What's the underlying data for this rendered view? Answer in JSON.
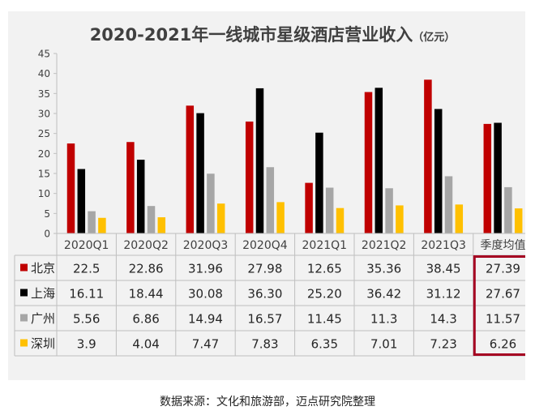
{
  "chart_data": {
    "type": "bar",
    "title": "2020-2021年一线城市星级酒店营业收入",
    "title_unit": "（亿元）",
    "categories": [
      "2020Q1",
      "2020Q2",
      "2020Q3",
      "2020Q4",
      "2021Q1",
      "2021Q2",
      "2021Q3",
      "季度均值"
    ],
    "series": [
      {
        "name": "北京",
        "color": "#c00000",
        "values": [
          22.5,
          22.86,
          31.96,
          27.98,
          12.65,
          35.36,
          38.45,
          27.39
        ],
        "labels": [
          "22.5",
          "22.86",
          "31.96",
          "27.98",
          "12.65",
          "35.36",
          "38.45",
          "27.39"
        ]
      },
      {
        "name": "上海",
        "color": "#000000",
        "values": [
          16.11,
          18.44,
          30.08,
          36.3,
          25.2,
          36.42,
          31.12,
          27.67
        ],
        "labels": [
          "16.11",
          "18.44",
          "30.08",
          "36.30",
          "25.20",
          "36.42",
          "31.12",
          "27.67"
        ]
      },
      {
        "name": "广州",
        "color": "#a6a6a6",
        "values": [
          5.56,
          6.86,
          14.94,
          16.57,
          11.45,
          11.3,
          14.3,
          11.57
        ],
        "labels": [
          "5.56",
          "6.86",
          "14.94",
          "16.57",
          "11.45",
          "11.3",
          "14.3",
          "11.57"
        ]
      },
      {
        "name": "深圳",
        "color": "#ffc000",
        "values": [
          3.9,
          4.04,
          7.47,
          7.83,
          6.35,
          7.01,
          7.23,
          6.26
        ],
        "labels": [
          "3.9",
          "4.04",
          "7.47",
          "7.83",
          "6.35",
          "7.01",
          "7.23",
          "6.26"
        ]
      }
    ],
    "ylim": [
      0,
      45
    ],
    "yticks": [
      0,
      5,
      10,
      15,
      20,
      25,
      30,
      35,
      40,
      45
    ],
    "grid": false,
    "legend": "data-table",
    "highlight_column": "季度均值",
    "highlight_color": "#a50021"
  },
  "source_note": "数据来源：文化和旅游部，迈点研究院整理"
}
